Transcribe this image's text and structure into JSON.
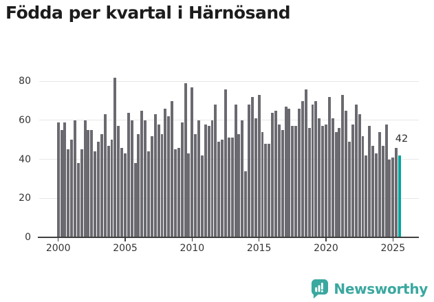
{
  "title": "Födda per kvartal i Härnösand",
  "footer": {
    "brand": "Newsworthy"
  },
  "colors": {
    "bar": "#6a6a70",
    "highlight": "#00a5a0",
    "gridline": "#e8e8e8",
    "axis": "#3f3f3f",
    "brand": "#3aa89f",
    "title_text": "#1c1c1c",
    "tick_text": "#333333"
  },
  "chart_data": {
    "type": "bar",
    "title": "Födda per kvartal i Härnösand",
    "xlabel": "",
    "ylabel": "",
    "frequency": "quarterly",
    "x_range": [
      "2000-Q1",
      "2025-Q3"
    ],
    "ylim": [
      0,
      86
    ],
    "grid": "horizontal",
    "y_ticks": [
      0,
      20,
      40,
      60,
      80
    ],
    "x_tick_quarter_indices": [
      0,
      20,
      40,
      60,
      80,
      100
    ],
    "x_tick_labels": [
      "2000",
      "2005",
      "2010",
      "2015",
      "2020",
      "2025"
    ],
    "highlight": {
      "index": 102,
      "category": "2025-Q3",
      "value": 42,
      "label": "42"
    },
    "categories": [
      "2000-Q1",
      "2000-Q2",
      "2000-Q3",
      "2000-Q4",
      "2001-Q1",
      "2001-Q2",
      "2001-Q3",
      "2001-Q4",
      "2002-Q1",
      "2002-Q2",
      "2002-Q3",
      "2002-Q4",
      "2003-Q1",
      "2003-Q2",
      "2003-Q3",
      "2003-Q4",
      "2004-Q1",
      "2004-Q2",
      "2004-Q3",
      "2004-Q4",
      "2005-Q1",
      "2005-Q2",
      "2005-Q3",
      "2005-Q4",
      "2006-Q1",
      "2006-Q2",
      "2006-Q3",
      "2006-Q4",
      "2007-Q1",
      "2007-Q2",
      "2007-Q3",
      "2007-Q4",
      "2008-Q1",
      "2008-Q2",
      "2008-Q3",
      "2008-Q4",
      "2009-Q1",
      "2009-Q2",
      "2009-Q3",
      "2009-Q4",
      "2010-Q1",
      "2010-Q2",
      "2010-Q3",
      "2010-Q4",
      "2011-Q1",
      "2011-Q2",
      "2011-Q3",
      "2011-Q4",
      "2012-Q1",
      "2012-Q2",
      "2012-Q3",
      "2012-Q4",
      "2013-Q1",
      "2013-Q2",
      "2013-Q3",
      "2013-Q4",
      "2014-Q1",
      "2014-Q2",
      "2014-Q3",
      "2014-Q4",
      "2015-Q1",
      "2015-Q2",
      "2015-Q3",
      "2015-Q4",
      "2016-Q1",
      "2016-Q2",
      "2016-Q3",
      "2016-Q4",
      "2017-Q1",
      "2017-Q2",
      "2017-Q3",
      "2017-Q4",
      "2018-Q1",
      "2018-Q2",
      "2018-Q3",
      "2018-Q4",
      "2019-Q1",
      "2019-Q2",
      "2019-Q3",
      "2019-Q4",
      "2020-Q1",
      "2020-Q2",
      "2020-Q3",
      "2020-Q4",
      "2021-Q1",
      "2021-Q2",
      "2021-Q3",
      "2021-Q4",
      "2022-Q1",
      "2022-Q2",
      "2022-Q3",
      "2022-Q4",
      "2023-Q1",
      "2023-Q2",
      "2023-Q3",
      "2023-Q4",
      "2024-Q1",
      "2024-Q2",
      "2024-Q3",
      "2024-Q4",
      "2025-Q1",
      "2025-Q2",
      "2025-Q3"
    ],
    "values": [
      59,
      55,
      59,
      45,
      50,
      60,
      38,
      45,
      60,
      55,
      55,
      44,
      49,
      53,
      63,
      47,
      50,
      82,
      57,
      46,
      43,
      64,
      60,
      38,
      53,
      65,
      60,
      44,
      52,
      63,
      58,
      53,
      66,
      62,
      70,
      45,
      46,
      59,
      79,
      43,
      77,
      53,
      60,
      42,
      58,
      57,
      60,
      68,
      49,
      50,
      76,
      51,
      51,
      68,
      53,
      60,
      34,
      68,
      72,
      61,
      73,
      54,
      48,
      48,
      64,
      65,
      58,
      55,
      67,
      66,
      57,
      57,
      66,
      70,
      76,
      56,
      68,
      70,
      61,
      57,
      58,
      72,
      61,
      54,
      56,
      73,
      65,
      49,
      58,
      68,
      63,
      52,
      42,
      57,
      47,
      43,
      54,
      47,
      58,
      40,
      41,
      46,
      42
    ]
  }
}
